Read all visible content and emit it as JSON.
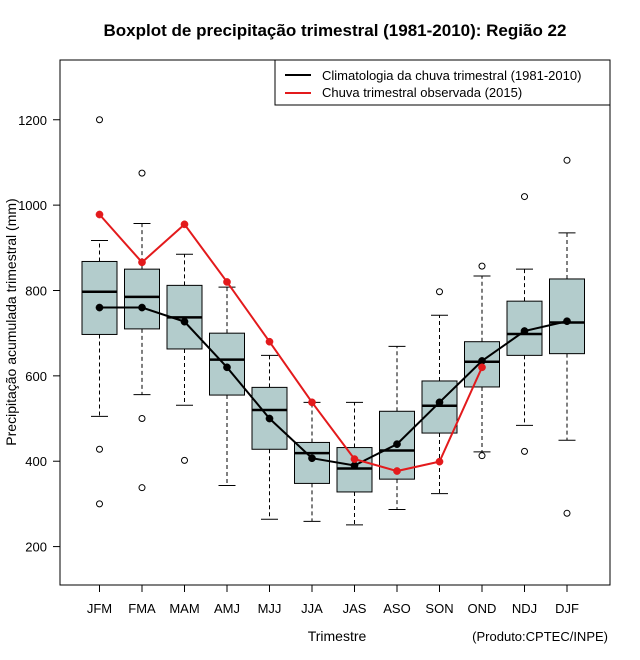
{
  "chart_data": {
    "type": "boxplot",
    "title": "Boxplot de precipitação trimestral (1981-2010): Região 22",
    "xlabel": "Trimestre",
    "ylabel": "Precipitação acumulada trimestral (mm)",
    "credit": "(Produto:CPTEC/INPE)",
    "ylim": [
      110,
      1340
    ],
    "yticks": [
      200,
      400,
      600,
      800,
      1000,
      1200
    ],
    "categories": [
      "JFM",
      "FMA",
      "MAM",
      "AMJ",
      "MJJ",
      "JJA",
      "JAS",
      "ASO",
      "SON",
      "OND",
      "NDJ",
      "DJF"
    ],
    "boxes": [
      {
        "whisker_low": 505,
        "q1": 697,
        "median": 797,
        "q3": 868,
        "whisker_high": 917,
        "outliers": [
          300,
          428,
          1200
        ]
      },
      {
        "whisker_low": 556,
        "q1": 710,
        "median": 785,
        "q3": 850,
        "whisker_high": 957,
        "outliers": [
          338,
          500,
          1075
        ]
      },
      {
        "whisker_low": 531,
        "q1": 663,
        "median": 737,
        "q3": 812,
        "whisker_high": 885,
        "outliers": [
          402
        ]
      },
      {
        "whisker_low": 343,
        "q1": 555,
        "median": 638,
        "q3": 700,
        "whisker_high": 808,
        "outliers": []
      },
      {
        "whisker_low": 264,
        "q1": 428,
        "median": 520,
        "q3": 573,
        "whisker_high": 648,
        "outliers": []
      },
      {
        "whisker_low": 259,
        "q1": 348,
        "median": 419,
        "q3": 444,
        "whisker_high": 538,
        "outliers": []
      },
      {
        "whisker_low": 251,
        "q1": 328,
        "median": 383,
        "q3": 432,
        "whisker_high": 538,
        "outliers": []
      },
      {
        "whisker_low": 287,
        "q1": 358,
        "median": 425,
        "q3": 517,
        "whisker_high": 669,
        "outliers": []
      },
      {
        "whisker_low": 324,
        "q1": 466,
        "median": 530,
        "q3": 588,
        "whisker_high": 742,
        "outliers": [
          797
        ]
      },
      {
        "whisker_low": 422,
        "q1": 574,
        "median": 633,
        "q3": 680,
        "whisker_high": 834,
        "outliers": [
          413,
          857
        ]
      },
      {
        "whisker_low": 484,
        "q1": 648,
        "median": 698,
        "q3": 775,
        "whisker_high": 850,
        "outliers": [
          423,
          1020
        ]
      },
      {
        "whisker_low": 449,
        "q1": 652,
        "median": 725,
        "q3": 827,
        "whisker_high": 935,
        "outliers": [
          278,
          1105
        ]
      }
    ],
    "series": [
      {
        "name": "Climatologia da chuva trimestral (1981-2010)",
        "color": "#000000",
        "values": [
          760,
          760,
          727,
          620,
          500,
          407,
          390,
          440,
          538,
          635,
          705,
          728
        ]
      },
      {
        "name": "Chuva trimestral observada (2015)",
        "color": "#e31a1c",
        "values": [
          978,
          866,
          955,
          820,
          680,
          538,
          405,
          377,
          399,
          620,
          null,
          null
        ]
      }
    ],
    "box_fill": "#b3cccc",
    "legend_position": "top-right"
  }
}
